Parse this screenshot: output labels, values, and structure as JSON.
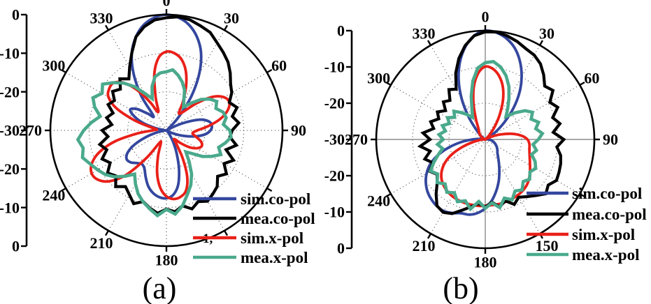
{
  "figure": {
    "captions": [
      "(a)",
      "(b)"
    ],
    "background": "#ffffff"
  },
  "colors": {
    "sim_co_pol": "#34479e",
    "mea_co_pol": "#000000",
    "sim_x_pol": "#e92018",
    "mea_x_pol": "#4aa98c",
    "grid_dotted": "#3a3a3a",
    "axis_gray": "#8c8c8c",
    "outline": "#000000"
  },
  "chart_data": [
    {
      "type": "polar-line",
      "caption": "(a)",
      "units": "dB",
      "r_axis": {
        "labels": [
          "0",
          "-10",
          "-20",
          "-30",
          "-20",
          "-10",
          "0"
        ],
        "min_db": -30,
        "max_db": 0,
        "ring_step_db": 10
      },
      "angle_labels": [
        {
          "angle": 0,
          "text": "0"
        },
        {
          "angle": 30,
          "text": "30"
        },
        {
          "angle": 60,
          "text": "60"
        },
        {
          "angle": 90,
          "text": "90"
        },
        {
          "angle": 180,
          "text": "180"
        },
        {
          "angle": 210,
          "text": "210"
        },
        {
          "angle": 240,
          "text": "240"
        },
        {
          "angle": 270,
          "text": "270"
        },
        {
          "angle": 300,
          "text": "300"
        },
        {
          "angle": 330,
          "text": "330"
        }
      ],
      "occluded_label_fragment": "1,",
      "legend": [
        {
          "label": "sim.co-pol",
          "color_key": "sim_co_pol"
        },
        {
          "label": "mea.co-pol",
          "color_key": "mea_co_pol"
        },
        {
          "label": "sim.x-pol",
          "color_key": "sim_x_pol"
        },
        {
          "label": "mea.x-pol",
          "color_key": "mea_x_pol"
        }
      ],
      "series": [
        {
          "name": "sim.co-pol",
          "color_key": "sim_co_pol",
          "style": "smooth",
          "angle_step_deg": 6,
          "db": [
            0,
            -0.6,
            -2,
            -4.5,
            -8,
            -13,
            -19,
            -25,
            -29,
            -30,
            -29.5,
            -25.5,
            -21,
            -18.8,
            -18.2,
            -18.6,
            -20,
            -22.5,
            -25.5,
            -28,
            -29.5,
            -30,
            -30,
            -29.5,
            -28.5,
            -26.5,
            -23.5,
            -19.5,
            -15.5,
            -13.2,
            -12.4,
            -12.6,
            -13.4,
            -14.8,
            -16.8,
            -18.6,
            -19.2,
            -18.6,
            -17.6,
            -17.3,
            -18.4,
            -21,
            -24.5,
            -27.5,
            -29.5,
            -30,
            -29.5,
            -27,
            -23.5,
            -20.8,
            -19.2,
            -20.6,
            -23.5,
            -25,
            -19,
            -13,
            -8,
            -4.5,
            -2,
            -0.6
          ]
        },
        {
          "name": "sim.x-pol",
          "color_key": "sim_x_pol",
          "style": "smooth",
          "angle_step_deg": 6,
          "db": [
            -9.6,
            -9.9,
            -11.2,
            -13.8,
            -17.5,
            -21.5,
            -24.5,
            -23.5,
            -19.5,
            -15.2,
            -12.8,
            -12.2,
            -13.4,
            -15.8,
            -19,
            -22,
            -23.2,
            -22.2,
            -20.6,
            -20,
            -20.8,
            -22.5,
            -25,
            -27,
            -25.5,
            -21.5,
            -16.8,
            -13.6,
            -12.4,
            -12.1,
            -12.9,
            -15,
            -18.5,
            -23,
            -26.5,
            -26,
            -21,
            -14.5,
            -10.3,
            -8.2,
            -7.7,
            -8.9,
            -11.8,
            -16.5,
            -22.5,
            -26.5,
            -27.5,
            -25.5,
            -21,
            -15.8,
            -12.7,
            -11.7,
            -11.6,
            -13.4,
            -17,
            -21.5,
            -24.8,
            -21,
            -15,
            -11
          ]
        },
        {
          "name": "mea.co-pol",
          "color_key": "mea_co_pol",
          "style": "jagged",
          "angle_step_deg": 6,
          "db": [
            -0.8,
            -0.4,
            -0.7,
            -1.5,
            -2.2,
            -3.8,
            -5,
            -6.2,
            -7.8,
            -9.5,
            -10.5,
            -12.2,
            -10.8,
            -12.6,
            -11.2,
            -13,
            -13.5,
            -11.5,
            -13.8,
            -11,
            -12.8,
            -10.8,
            -12.2,
            -10.4,
            -9.6,
            -8.8,
            -9.8,
            -8.6,
            -10,
            -8.8,
            -9.6,
            -8.4,
            -9.4,
            -10.6,
            -9.2,
            -10.8,
            -12,
            -10.4,
            -12.4,
            -11.2,
            -13.2,
            -11.8,
            -13.8,
            -12.4,
            -14.8,
            -13.4,
            -15.8,
            -14.2,
            -15.5,
            -13.5,
            -14.5,
            -12.8,
            -14,
            -12,
            -13.5,
            -11,
            -8,
            -4.5,
            -2.5,
            -1.2
          ]
        },
        {
          "name": "mea.x-pol",
          "color_key": "mea_x_pol",
          "style": "jagged",
          "angle_step_deg": 6,
          "db": [
            -14.8,
            -14.2,
            -15.4,
            -16.8,
            -18.5,
            -21,
            -22.5,
            -20.5,
            -18,
            -16.2,
            -15,
            -16,
            -14.6,
            -14.2,
            -15.2,
            -13.6,
            -13.2,
            -14.4,
            -15.8,
            -14.6,
            -16.5,
            -18.5,
            -21,
            -22.5,
            -20,
            -17,
            -14.5,
            -12.5,
            -10,
            -8.2,
            -9.5,
            -7.8,
            -9.2,
            -10.5,
            -12,
            -14,
            -16,
            -14,
            -12,
            -10.5,
            -9.5,
            -8.5,
            -7.2,
            -8,
            -7,
            -8.6,
            -10.5,
            -12.5,
            -10.5,
            -9.2,
            -10.8,
            -9.6,
            -11.5,
            -13.5,
            -16,
            -19,
            -21,
            -18,
            -15.8,
            -15
          ]
        }
      ]
    },
    {
      "type": "polar-line",
      "caption": "(b)",
      "units": "dB",
      "r_axis": {
        "labels": [
          "0",
          "-10",
          "-20",
          "-30",
          "-20",
          "-10",
          "0"
        ],
        "min_db": -30,
        "max_db": 0,
        "ring_step_db": 10
      },
      "angle_labels": [
        {
          "angle": 0,
          "text": "0"
        },
        {
          "angle": 30,
          "text": "30"
        },
        {
          "angle": 60,
          "text": "60"
        },
        {
          "angle": 90,
          "text": "90"
        },
        {
          "angle": 150,
          "text": "150"
        },
        {
          "angle": 180,
          "text": "180"
        },
        {
          "angle": 210,
          "text": "210"
        },
        {
          "angle": 240,
          "text": "240"
        },
        {
          "angle": 270,
          "text": "270"
        },
        {
          "angle": 300,
          "text": "300"
        },
        {
          "angle": 330,
          "text": "330"
        }
      ],
      "occluded_label_fragment": "",
      "legend": [
        {
          "label": "sim.co-pol",
          "color_key": "sim_co_pol"
        },
        {
          "label": "mea.co-pol",
          "color_key": "mea_co_pol"
        },
        {
          "label": "sim.x-pol",
          "color_key": "sim_x_pol"
        },
        {
          "label": "mea.x-pol",
          "color_key": "mea_x_pol"
        }
      ],
      "series": [
        {
          "name": "sim.co-pol",
          "color_key": "sim_co_pol",
          "style": "smooth",
          "angle_step_deg": 6,
          "db": [
            0,
            -0.4,
            -1.6,
            -3.6,
            -6.5,
            -10,
            -14,
            -18.5,
            -23,
            -26.5,
            -29,
            -30,
            -30,
            -30,
            -29.5,
            -29,
            -28.5,
            -28,
            -27.5,
            -27,
            -26.5,
            -26,
            -25.5,
            -25,
            -24,
            -22.5,
            -20.5,
            -18,
            -15.5,
            -13,
            -11,
            -9.6,
            -8.8,
            -8.6,
            -7.8,
            -7.2,
            -7.3,
            -7.8,
            -8.6,
            -9.8,
            -11.4,
            -13.5,
            -16.5,
            -20,
            -23.5,
            -26.5,
            -28.5,
            -29.5,
            -30,
            -30,
            -29.5,
            -29,
            -28,
            -26,
            -22,
            -17,
            -12,
            -7.5,
            -3.8,
            -1.2
          ]
        },
        {
          "name": "sim.x-pol",
          "color_key": "sim_x_pol",
          "style": "smooth",
          "angle_step_deg": 6,
          "db": [
            -9.9,
            -10.4,
            -12,
            -14.5,
            -18,
            -22,
            -25.5,
            -28,
            -29.5,
            -30,
            -29.5,
            -28,
            -25.5,
            -22.5,
            -20,
            -18.4,
            -17.8,
            -17.6,
            -17.2,
            -16.6,
            -15.8,
            -14.8,
            -13.8,
            -13,
            -12.5,
            -12.2,
            -12,
            -11.9,
            -11.8,
            -11.8,
            -11.7,
            -11.6,
            -11.6,
            -11.6,
            -11.7,
            -11.9,
            -12.3,
            -12.9,
            -13.8,
            -15.2,
            -17.2,
            -20,
            -23.5,
            -26.5,
            -28.5,
            -29.5,
            -30,
            -30,
            -30,
            -29.5,
            -29,
            -28.5,
            -28,
            -27.5,
            -27,
            -26,
            -23.5,
            -19.5,
            -15,
            -11.6
          ]
        },
        {
          "name": "mea.co-pol",
          "color_key": "mea_co_pol",
          "style": "jagged",
          "angle_step_deg": 6,
          "db": [
            -0.3,
            -0.2,
            -0.8,
            -1.6,
            -2.6,
            -3.1,
            -4.2,
            -6,
            -8,
            -7,
            -9.5,
            -8.2,
            -10.5,
            -9,
            -11.2,
            -8.4,
            -10.2,
            -8.8,
            -8.2,
            -7.8,
            -7.4,
            -8.6,
            -7.6,
            -9.2,
            -10.5,
            -11.6,
            -10.4,
            -12.2,
            -11,
            -12.6,
            -11.4,
            -12.2,
            -11,
            -9.5,
            -7.6,
            -6.8,
            -7.4,
            -9.8,
            -12.2,
            -13.6,
            -12.4,
            -14.2,
            -12.5,
            -14.5,
            -12,
            -14.8,
            -12.8,
            -15.5,
            -14.2,
            -16,
            -14.8,
            -16.5,
            -14.5,
            -15.5,
            -13,
            -14,
            -10,
            -6.5,
            -3.5,
            -1.2
          ]
        },
        {
          "name": "mea.x-pol",
          "color_key": "mea_x_pol",
          "style": "jagged",
          "angle_step_deg": 6,
          "db": [
            -8.8,
            -8.4,
            -9.6,
            -11.5,
            -14,
            -17,
            -19.5,
            -21.5,
            -19,
            -16.5,
            -15,
            -16.2,
            -14.6,
            -15.8,
            -14.2,
            -15.4,
            -16.8,
            -15.6,
            -16.6,
            -15,
            -14,
            -14.8,
            -13.6,
            -14.4,
            -12.8,
            -13.6,
            -11.8,
            -13,
            -10.8,
            -12.4,
            -11,
            -12.8,
            -10.4,
            -12.2,
            -11.2,
            -13,
            -12,
            -13.5,
            -12.2,
            -13.8,
            -12.6,
            -14.5,
            -16.4,
            -18,
            -16.8,
            -18.4,
            -17.2,
            -18.8,
            -17.6,
            -19.2,
            -18,
            -19.6,
            -18.4,
            -20,
            -21.5,
            -23,
            -21,
            -17.5,
            -13.5,
            -10.2
          ]
        }
      ]
    }
  ]
}
